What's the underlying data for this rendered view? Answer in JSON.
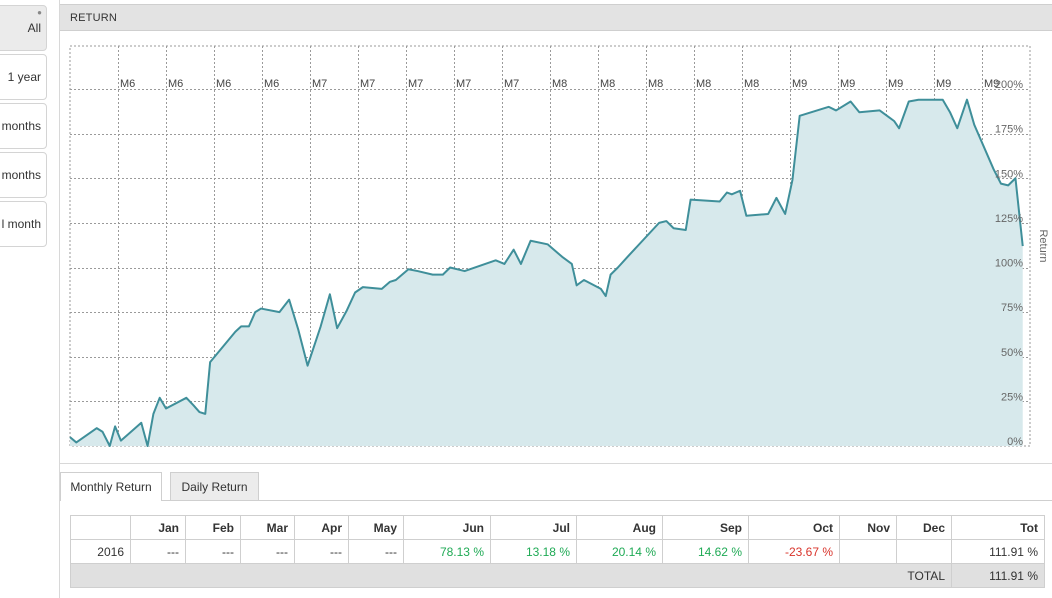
{
  "sidebar": {
    "buttons": [
      {
        "label": "All",
        "active": true
      },
      {
        "label": "1 year",
        "active": false
      },
      {
        "label": "months",
        "active": false
      },
      {
        "label": "months",
        "active": false
      },
      {
        "label": "l month",
        "active": false
      }
    ]
  },
  "panel": {
    "title": "RETURN"
  },
  "chart_data": {
    "type": "area",
    "title": "",
    "xlabel": "",
    "ylabel": "Return",
    "y_axis_side": "right",
    "ylim": [
      0,
      200
    ],
    "yticks": [
      "0%",
      "25%",
      "50%",
      "75%",
      "100%",
      "125%",
      "150%",
      "175%",
      "200%"
    ],
    "x_tick_labels": [
      "M6",
      "M6",
      "M6",
      "M6",
      "M7",
      "M7",
      "M7",
      "M7",
      "M7",
      "M8",
      "M8",
      "M8",
      "M8",
      "M8",
      "M9",
      "M9",
      "M9",
      "M9",
      "M9"
    ],
    "grid": true,
    "colors": {
      "line": "#3f8f9a",
      "fill": "#d7e9ec",
      "grid": "#9a9a9a"
    },
    "series": [
      {
        "values": [
          [
            0,
            5
          ],
          [
            1.3,
            2
          ],
          [
            5.5,
            10
          ],
          [
            6.7,
            8
          ],
          [
            8.2,
            0
          ],
          [
            9.3,
            11
          ],
          [
            10.5,
            3
          ],
          [
            14.7,
            13
          ],
          [
            16,
            0
          ],
          [
            17.2,
            18
          ],
          [
            18.5,
            27
          ],
          [
            19.8,
            21
          ],
          [
            24,
            27
          ],
          [
            25.4,
            23
          ],
          [
            26.7,
            19
          ],
          [
            27.9,
            18
          ],
          [
            28.9,
            47
          ],
          [
            34.1,
            64
          ],
          [
            35.3,
            67
          ],
          [
            36.9,
            67
          ],
          [
            38.2,
            75
          ],
          [
            39.4,
            77
          ],
          [
            43.2,
            75
          ],
          [
            45.2,
            82
          ],
          [
            47.1,
            65
          ],
          [
            49,
            45
          ],
          [
            51.7,
            67
          ],
          [
            53.6,
            85
          ],
          [
            55.1,
            66
          ],
          [
            57.1,
            76
          ],
          [
            58.8,
            86
          ],
          [
            60.4,
            89
          ],
          [
            64.3,
            88
          ],
          [
            66,
            92
          ],
          [
            67.2,
            93
          ],
          [
            69.8,
            99
          ],
          [
            71.7,
            98
          ],
          [
            74.8,
            96
          ],
          [
            76.9,
            96
          ],
          [
            78.4,
            100
          ],
          [
            81.4,
            98
          ],
          [
            87.8,
            104
          ],
          [
            89.6,
            102
          ],
          [
            91.5,
            110
          ],
          [
            93,
            102
          ],
          [
            95,
            115
          ],
          [
            98.5,
            113
          ],
          [
            101.5,
            106
          ],
          [
            103.5,
            102
          ],
          [
            104.5,
            90
          ],
          [
            106,
            93
          ],
          [
            109.5,
            88
          ],
          [
            110.5,
            84
          ],
          [
            111.5,
            96
          ],
          [
            113,
            100
          ],
          [
            115,
            106
          ],
          [
            121.5,
            125
          ],
          [
            123,
            126
          ],
          [
            124.5,
            122
          ],
          [
            127,
            121
          ],
          [
            128,
            138
          ],
          [
            134,
            137
          ],
          [
            135.5,
            142
          ],
          [
            136.5,
            141
          ],
          [
            138.2,
            143
          ],
          [
            139.5,
            129
          ],
          [
            144,
            130
          ],
          [
            145.7,
            139
          ],
          [
            147.5,
            130
          ],
          [
            149,
            149
          ],
          [
            150.5,
            185
          ],
          [
            156.5,
            190
          ],
          [
            158,
            188
          ],
          [
            161,
            193
          ],
          [
            162.8,
            187
          ],
          [
            167,
            188
          ],
          [
            170,
            182
          ],
          [
            171,
            178
          ],
          [
            173,
            193
          ],
          [
            175,
            194
          ],
          [
            180,
            194
          ],
          [
            181.5,
            187
          ],
          [
            183,
            178
          ],
          [
            185,
            194
          ],
          [
            186.5,
            180
          ],
          [
            190.5,
            155
          ],
          [
            192,
            147
          ],
          [
            193.5,
            146
          ],
          [
            195,
            150
          ],
          [
            196.5,
            112
          ]
        ]
      }
    ]
  },
  "tabs": {
    "monthly": "Monthly Return",
    "daily": "Daily Return"
  },
  "table": {
    "headers": [
      "",
      "Jan",
      "Feb",
      "Mar",
      "Apr",
      "May",
      "Jun",
      "Jul",
      "Aug",
      "Sep",
      "Oct",
      "Nov",
      "Dec",
      "Tot"
    ],
    "rows": [
      {
        "year": "2016",
        "cells": [
          "---",
          "---",
          "---",
          "---",
          "---",
          "78.13 %",
          "13.18 %",
          "20.14 %",
          "14.62 %",
          "-23.67 %",
          "",
          "",
          "111.91 %"
        ]
      }
    ],
    "total_label": "TOTAL",
    "total_value": "111.91 %"
  }
}
